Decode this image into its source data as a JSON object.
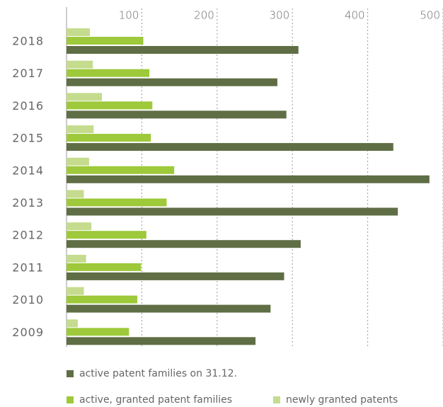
{
  "chart_data": {
    "type": "hbar",
    "categories": [
      "2018",
      "2017",
      "2016",
      "2015",
      "2014",
      "2013",
      "2012",
      "2011",
      "2010",
      "2009"
    ],
    "series": [
      {
        "name": "active patent families on 31.12.",
        "color": "#5f6e45",
        "values": [
          308,
          280,
          292,
          434,
          482,
          440,
          311,
          289,
          271,
          251
        ]
      },
      {
        "name": "active, granted patent families",
        "color": "#9dc93a",
        "values": [
          102,
          110,
          114,
          112,
          143,
          133,
          106,
          99,
          94,
          83
        ]
      },
      {
        "name": "newly granted patents",
        "color": "#c5dc8e",
        "values": [
          31,
          35,
          47,
          36,
          30,
          23,
          33,
          26,
          23,
          15
        ]
      }
    ],
    "xlim": [
      0,
      500
    ],
    "xticks": [
      100,
      200,
      300,
      400,
      500
    ],
    "grid": true
  }
}
